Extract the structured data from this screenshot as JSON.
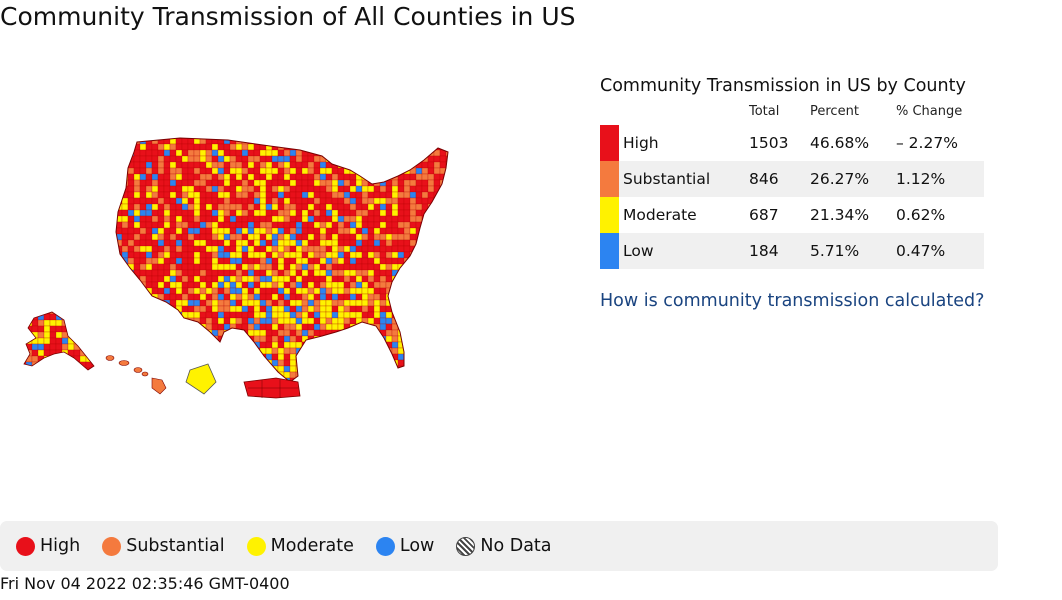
{
  "page": {
    "title": "Community Transmission of All Counties in US"
  },
  "colors": {
    "high": "#e8101a",
    "substantial": "#f47a3e",
    "moderate": "#fff200",
    "low": "#2c84f1",
    "no_data": "#666666"
  },
  "summary": {
    "title": "Community Transmission in US by County",
    "columns": [
      "Total",
      "Percent",
      "% Change"
    ],
    "rows": [
      {
        "level": "High",
        "color": "#e8101a",
        "total": "1503",
        "percent": "46.68%",
        "change": "– 2.27%"
      },
      {
        "level": "Substantial",
        "color": "#f47a3e",
        "total": "846",
        "percent": "26.27%",
        "change": "1.12%"
      },
      {
        "level": "Moderate",
        "color": "#fff200",
        "total": "687",
        "percent": "21.34%",
        "change": "0.62%"
      },
      {
        "level": "Low",
        "color": "#2c84f1",
        "total": "184",
        "percent": "5.71%",
        "change": "0.47%"
      }
    ],
    "link_text": "How is community transmission calculated?"
  },
  "legend": {
    "items": [
      {
        "label": "High",
        "color": "#e8101a",
        "icon": "red-dot-icon"
      },
      {
        "label": "Substantial",
        "color": "#f47a3e",
        "icon": "orange-dot-icon"
      },
      {
        "label": "Moderate",
        "color": "#fff200",
        "icon": "yellow-dot-icon"
      },
      {
        "label": "Low",
        "color": "#2c84f1",
        "icon": "blue-dot-icon"
      },
      {
        "label": "No Data",
        "color": "#666666",
        "icon": "hatched-dot-icon"
      }
    ]
  },
  "timestamp": "Fri Nov 04 2022 02:35:46 GMT-0400"
}
